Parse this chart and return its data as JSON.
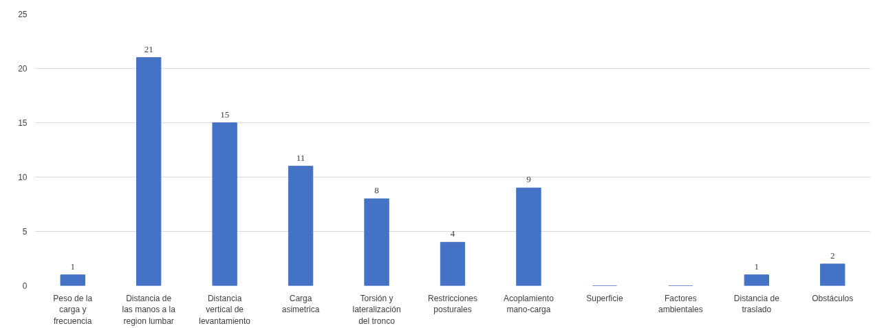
{
  "chart_data": {
    "type": "bar",
    "categories": [
      "Peso de la carga y frecuencia",
      "Distancia de las manos a la region lumbar",
      "Distancia vertical de levantamiento",
      "Carga asimetrica",
      "Torsión y lateralización del tronco",
      "Restricciones posturales",
      "Acoplamiento mano-carga",
      "Superficie",
      "Factores ambientales",
      "Distancia de traslado",
      "Obstáculos"
    ],
    "values": [
      1,
      21,
      15,
      11,
      8,
      4,
      9,
      0,
      0,
      1,
      2
    ],
    "value_labels": [
      "1",
      "21",
      "15",
      "11",
      "8",
      "4",
      "9",
      null,
      null,
      "1",
      "2"
    ],
    "color": "#4472c4",
    "ylim": [
      0,
      25
    ],
    "yticks": [
      0,
      5,
      10,
      15,
      20,
      25
    ],
    "grid": "y"
  }
}
